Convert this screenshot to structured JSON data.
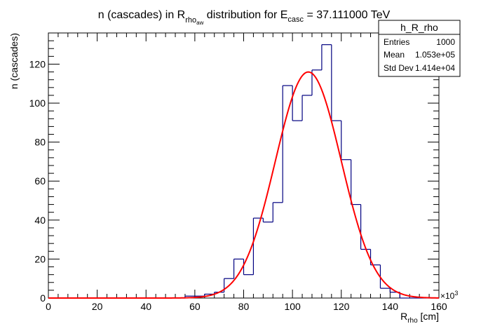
{
  "title": {
    "prefix": "n (cascades) in R",
    "sub1": "rho",
    "sub2": "aw",
    "middle": " distribution for E",
    "sub3": "casc",
    "suffix": " = 37.111000 TeV"
  },
  "stats_box": {
    "name": "h_R_rho",
    "rows": [
      {
        "label": "Entries",
        "value": "1000"
      },
      {
        "label": "Mean",
        "value": "1.053e+05"
      },
      {
        "label": "Std Dev",
        "value": "1.414e+04"
      }
    ]
  },
  "axes": {
    "xlabel_main": "R",
    "xlabel_sub": "rho",
    "xlabel_unit": " [cm]",
    "ylabel": "n (cascades)",
    "x_exponent_label": "×10",
    "x_exponent_power": "3"
  },
  "colors": {
    "histogram": "#000080",
    "fit": "#ff0000",
    "axis": "#000000"
  },
  "chart_data": {
    "type": "bar",
    "style": "step-histogram",
    "xlim": [
      0,
      160
    ],
    "ylim": [
      0,
      136
    ],
    "x_unit_multiplier": 1000,
    "x_ticks": [
      0,
      20,
      40,
      60,
      80,
      100,
      120,
      140,
      160
    ],
    "y_ticks": [
      0,
      20,
      40,
      60,
      80,
      100,
      120
    ],
    "bin_edges": [
      0,
      4,
      8,
      12,
      16,
      20,
      24,
      28,
      32,
      36,
      40,
      44,
      48,
      52,
      56,
      60,
      64,
      68,
      72,
      76,
      80,
      84,
      88,
      92,
      96,
      100,
      104,
      108,
      112,
      116,
      120,
      124,
      128,
      132,
      136,
      140,
      144,
      148,
      152,
      156,
      160
    ],
    "values": [
      0,
      0,
      0,
      0,
      0,
      0,
      0,
      0,
      0,
      0,
      0,
      0,
      0,
      0,
      1,
      1,
      2,
      3,
      10,
      20,
      12,
      41,
      39,
      49,
      109,
      91,
      104,
      117,
      130,
      91,
      71,
      48,
      25,
      17,
      5,
      3,
      0,
      0,
      0,
      0
    ],
    "fit": {
      "type": "gaussian",
      "constant": 116,
      "mean": 106.5,
      "sigma": 13.5
    },
    "grid": false,
    "stats_box_position": "top-right"
  }
}
